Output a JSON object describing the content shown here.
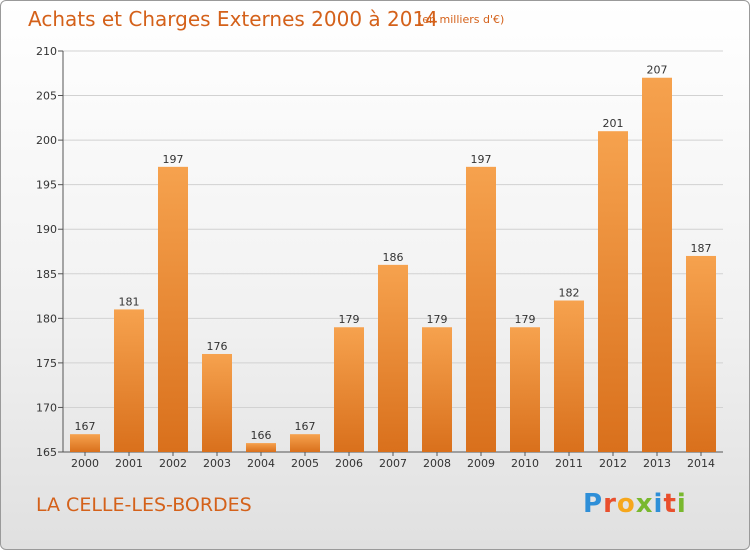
{
  "title": "Achats et Charges Externes 2000 à 2014",
  "subtitle": "(en milliers d'€)",
  "place": "LA CELLE-LES-BORDES",
  "logo": {
    "letters": [
      "P",
      "r",
      "o",
      "x",
      "i",
      "t",
      "i"
    ],
    "colors": [
      "#2e8fd8",
      "#e94f2d",
      "#f6a71c",
      "#79b82e",
      "#2e8fd8",
      "#e94f2d",
      "#79b82e"
    ]
  },
  "colors": {
    "bar_light": "#f6a24e",
    "bar_dark": "#e27f26",
    "text_accent": "#d4611a"
  },
  "chart_data": {
    "type": "bar",
    "categories": [
      "2000",
      "2001",
      "2002",
      "2003",
      "2004",
      "2005",
      "2006",
      "2007",
      "2008",
      "2009",
      "2010",
      "2011",
      "2012",
      "2013",
      "2014"
    ],
    "values": [
      167,
      181,
      197,
      176,
      166,
      167,
      179,
      186,
      179,
      197,
      179,
      182,
      201,
      207,
      187
    ],
    "ylim": [
      165,
      210
    ],
    "yticks": [
      165,
      170,
      175,
      180,
      185,
      190,
      195,
      200,
      205,
      210
    ],
    "grid": true
  }
}
